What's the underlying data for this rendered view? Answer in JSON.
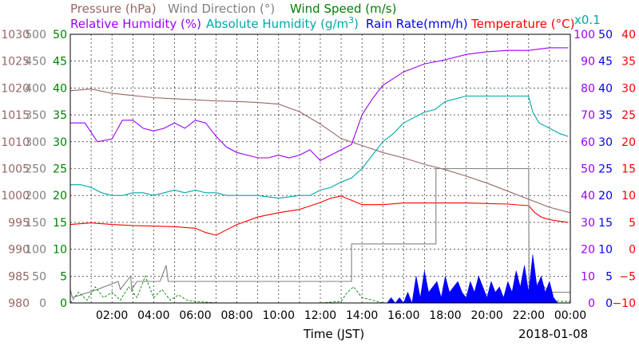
{
  "chart_data": {
    "type": "line",
    "date": "2018-01-08",
    "xlabel": "Time (JST)",
    "x_ticks": [
      "02:00",
      "04:00",
      "06:00",
      "08:00",
      "10:00",
      "12:00",
      "14:00",
      "16:00",
      "18:00",
      "20:00",
      "22:00",
      "00:00"
    ],
    "xlim_hours": [
      0,
      24
    ],
    "grid": true,
    "legend_placement": "top",
    "axes": {
      "pressure": {
        "label": "Pressure (hPa)",
        "color": "#996666",
        "range": [
          980,
          1030
        ],
        "ticks": [
          "980",
          "985",
          "990",
          "995",
          "1000",
          "1005",
          "1010",
          "1015",
          "1020",
          "1025",
          "1030"
        ]
      },
      "wind_dir": {
        "label": "Wind Direction (°)",
        "color": "#808080",
        "range": [
          0,
          500
        ],
        "ticks": [
          "0",
          "50",
          "100",
          "150",
          "200",
          "250",
          "300",
          "350",
          "400",
          "450",
          "500"
        ]
      },
      "wind_speed": {
        "label": "Wind Speed (m/s)",
        "color": "#008000",
        "range": [
          0,
          50
        ],
        "ticks": [
          "0",
          "5",
          "10",
          "15",
          "20",
          "25",
          "30",
          "35",
          "40",
          "45",
          "50"
        ]
      },
      "rh": {
        "label": "Relative Humidity (%)",
        "color": "#9900ff",
        "range": [
          0,
          100
        ],
        "ticks": [
          "0",
          "10",
          "20",
          "30",
          "40",
          "50",
          "60",
          "70",
          "80",
          "90",
          "100"
        ]
      },
      "abs_hum": {
        "label": "Absolute Humidity (g/m",
        "sup": "3",
        "label_end": ")",
        "color": "#00a8a8",
        "scale_note": "x0.1"
      },
      "rain": {
        "label": "Rain Rate(mm/h)",
        "color": "#0000ff",
        "range": [
          0,
          50
        ],
        "ticks": [
          "0",
          "5",
          "10",
          "15",
          "20",
          "25",
          "30",
          "35",
          "40",
          "45",
          "50"
        ]
      },
      "temp": {
        "label": "Temperature (°C)",
        "color": "#ff0000",
        "range": [
          -10,
          40
        ],
        "ticks": [
          "−10",
          "−5",
          "0",
          "5",
          "10",
          "15",
          "20",
          "25",
          "30",
          "35",
          "40"
        ]
      }
    },
    "series": [
      {
        "name": "Pressure (hPa)",
        "axis": "pressure",
        "color": "#996666",
        "x": [
          0,
          1,
          2,
          3,
          4,
          5,
          6,
          7,
          8,
          9,
          10,
          11,
          12,
          13,
          14,
          15,
          16,
          17,
          18,
          19,
          20,
          21,
          22,
          23,
          24
        ],
        "y": [
          1019.5,
          1019.8,
          1019,
          1018.6,
          1018.2,
          1018.0,
          1017.8,
          1017.6,
          1017.5,
          1017.3,
          1017.0,
          1015.6,
          1013.3,
          1010.6,
          1009.3,
          1008,
          1007,
          1005.8,
          1004.8,
          1003.6,
          1002.3,
          1000.8,
          999.3,
          997.8,
          996.8
        ]
      },
      {
        "name": "Relative Humidity (%)",
        "axis": "rh",
        "color": "#9900ff",
        "x": [
          0,
          0.7,
          1.3,
          2,
          2.5,
          3,
          3.5,
          4,
          4.5,
          5,
          5.5,
          6,
          6.5,
          7,
          7.5,
          8,
          8.5,
          9,
          9.5,
          10,
          10.5,
          11,
          11.5,
          12,
          12.5,
          13,
          13.5,
          14,
          14.5,
          15,
          16,
          17,
          18,
          19,
          20,
          21,
          22,
          23,
          23.9
        ],
        "y": [
          67,
          67,
          60,
          61,
          68,
          68,
          65,
          64,
          65,
          67,
          65,
          68,
          67,
          62,
          58,
          56,
          55,
          54,
          54,
          55,
          54,
          55,
          57,
          53,
          55,
          57,
          59,
          70,
          76,
          81,
          86,
          89,
          90.5,
          92.5,
          93.5,
          94,
          94,
          95,
          95
        ]
      },
      {
        "name": "Absolute Humidity (x0.1)",
        "axis": "rh",
        "color": "#00a8a8",
        "x": [
          0,
          0.5,
          1,
          1.5,
          2,
          2.5,
          3,
          3.5,
          4,
          4.5,
          5,
          5.5,
          6,
          6.5,
          7,
          7.5,
          8,
          8.5,
          9,
          9.5,
          10,
          10.5,
          11,
          11.5,
          12,
          12.5,
          13,
          13.5,
          14,
          14.5,
          15,
          15.5,
          16,
          16.5,
          17,
          17.5,
          18,
          19,
          20,
          21,
          22,
          22.2,
          22.5,
          23,
          23.5,
          23.9
        ],
        "y": [
          44,
          44,
          43,
          41,
          40,
          40,
          41,
          41,
          40,
          41,
          42,
          41,
          42,
          41,
          41,
          40,
          40,
          40,
          40,
          39.5,
          39,
          39.5,
          40,
          40,
          42,
          43,
          45,
          46.5,
          50,
          55,
          60,
          63,
          67,
          69,
          71,
          72,
          75,
          77,
          77,
          77,
          77,
          71,
          67,
          65,
          63,
          62
        ]
      },
      {
        "name": "Temperature (°C)",
        "axis": "temp",
        "color": "#ff0000",
        "x": [
          0,
          1,
          2,
          3,
          4,
          5,
          6,
          6.5,
          7,
          7.5,
          8,
          9,
          10,
          11,
          12,
          12.5,
          13,
          13.5,
          14,
          15,
          16,
          17,
          18,
          19,
          20,
          21,
          22,
          22.3,
          22.6,
          23,
          23.5,
          23.9
        ],
        "y": [
          4.6,
          4.9,
          4.6,
          4.4,
          4.3,
          4.2,
          3.9,
          3.1,
          2.6,
          3.6,
          4.6,
          6,
          6.8,
          7.4,
          8.7,
          9.5,
          9.9,
          9.1,
          8.3,
          8.3,
          8.6,
          8.6,
          8.6,
          8.6,
          8.5,
          8.4,
          8.1,
          6.8,
          6.0,
          5.5,
          5.2,
          5.0
        ]
      },
      {
        "name": "Wind Direction (°)",
        "axis": "wind_dir",
        "color": "#808080",
        "x": [
          0,
          0.1,
          1.3,
          2.3,
          2.4,
          2.9,
          2.95,
          3.2,
          4.3,
          4.5,
          4.6,
          4.7,
          5,
          7,
          9,
          11,
          13,
          13.5,
          13.5,
          14,
          15,
          16,
          17,
          17.55,
          17.55,
          18,
          19,
          20,
          21,
          22,
          22.02,
          22.5,
          23,
          23.6,
          24
        ],
        "y": [
          25,
          10,
          25,
          40,
          25,
          50,
          25,
          40,
          40,
          60,
          70,
          40,
          40,
          40,
          40,
          40,
          40,
          40,
          110,
          110,
          110,
          110,
          110,
          110,
          250,
          250,
          250,
          250,
          250,
          250,
          10,
          40,
          20,
          20,
          20
        ]
      },
      {
        "name": "Wind Speed (m/s)",
        "axis": "wind_speed",
        "color": "#008000",
        "x": [
          0,
          0.4,
          0.8,
          1.2,
          1.6,
          2,
          2.4,
          2.8,
          3.2,
          3.6,
          4.0,
          4.4,
          4.8,
          5.2,
          5.6,
          6,
          7,
          8,
          9,
          10,
          11,
          12,
          13,
          13.3,
          13.6,
          14,
          14.5,
          15,
          16,
          17,
          18,
          19,
          20,
          21,
          22,
          22.5,
          23,
          23.5,
          24
        ],
        "y": [
          0,
          2,
          0.5,
          3,
          1,
          2,
          0.5,
          3,
          1,
          5,
          1,
          2.5,
          0.5,
          1.5,
          0.5,
          0.3,
          0,
          0,
          0,
          0,
          0,
          0,
          0.3,
          2,
          3,
          1,
          0.5,
          0,
          0,
          0,
          0,
          0,
          0,
          0,
          0.3,
          1.5,
          0.5,
          0.3,
          0.3
        ]
      },
      {
        "name": "Rain Rate(mm/h)",
        "axis": "rain",
        "color": "#0000ff",
        "x": [
          15,
          15.2,
          15.4,
          15.6,
          15.8,
          16,
          16.2,
          16.4,
          16.6,
          16.8,
          17,
          17.2,
          17.4,
          17.6,
          17.8,
          18,
          18.2,
          18.4,
          18.6,
          18.8,
          19,
          19.2,
          19.4,
          19.6,
          19.8,
          20,
          20.2,
          20.4,
          20.6,
          20.8,
          21,
          21.2,
          21.4,
          21.6,
          21.8,
          22,
          22.2,
          22.4,
          22.6,
          22.8,
          23,
          23.2,
          23.4
        ],
        "y": [
          0,
          0,
          1,
          0,
          1,
          0,
          2,
          0,
          5,
          1,
          6,
          2,
          3,
          4,
          1,
          5,
          2,
          3,
          4,
          2,
          1,
          4,
          2,
          5,
          3,
          1,
          4,
          2,
          3,
          1,
          4,
          2,
          6,
          3,
          7,
          2,
          9,
          3,
          5,
          2,
          4,
          1,
          0
        ]
      }
    ]
  }
}
